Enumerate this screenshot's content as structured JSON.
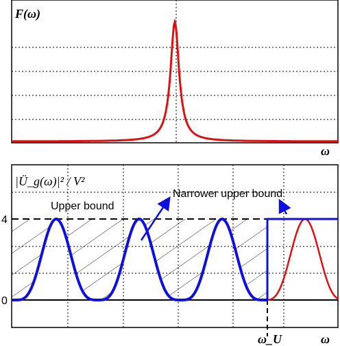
{
  "chart_data": [
    {
      "type": "line",
      "ylabel": "F(ω)",
      "xlabel": "ω",
      "series": [
        {
          "color": "#dd1111",
          "peak_x": 0.5,
          "width": 0.07
        }
      ],
      "grid": true
    },
    {
      "type": "line",
      "ylabel": "|Ü_g(ω)|² / V²",
      "xlabel": "ω",
      "yticks": [
        "0",
        "4"
      ],
      "ylim": [
        0,
        4.7
      ],
      "x_marker": "ω_U",
      "annotations": {
        "upper_bound": "Upper bound",
        "narrower_upper_bound": "Narrower upper bound"
      },
      "series": [
        {
          "color": "#1010dd",
          "kind": "periodic 4·sin²",
          "x_range": [
            0,
            0.77
          ]
        },
        {
          "color": "#dd1111",
          "kind": "periodic 4·sin²",
          "x_range": [
            0.77,
            1.0
          ]
        }
      ],
      "upper_bound_level": 4,
      "grid": true
    }
  ]
}
